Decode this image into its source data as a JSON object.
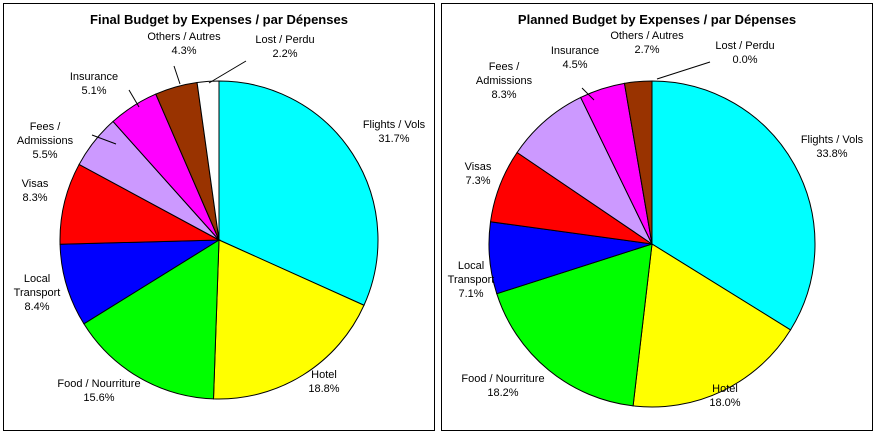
{
  "chart_data": [
    {
      "type": "pie",
      "title": "Final Budget by Expenses / par Dépenses",
      "slices": [
        {
          "name": "Flights / Vols",
          "value": 31.7,
          "label": "31.7%",
          "color": "#00FFFF"
        },
        {
          "name": "Hotel",
          "value": 18.8,
          "label": "18.8%",
          "color": "#FFFF00"
        },
        {
          "name": "Food / Nourriture",
          "value": 15.6,
          "label": "15.6%",
          "color": "#00FF00"
        },
        {
          "name": "Local Transport",
          "value": 8.4,
          "label": "8.4%",
          "color": "#0000FF"
        },
        {
          "name": "Visas",
          "value": 8.3,
          "label": "8.3%",
          "color": "#FF0000"
        },
        {
          "name": "Fees / Admissions",
          "value": 5.5,
          "label": "5.5%",
          "color": "#CC99FF"
        },
        {
          "name": "Insurance",
          "value": 5.1,
          "label": "5.1%",
          "color": "#FF00FF"
        },
        {
          "name": "Others / Autres",
          "value": 4.3,
          "label": "4.3%",
          "color": "#993300"
        },
        {
          "name": "Lost / Perdu",
          "value": 2.2,
          "label": "2.2%",
          "color": "#FFFFFF"
        }
      ]
    },
    {
      "type": "pie",
      "title": "Planned Budget by Expenses / par Dépenses",
      "slices": [
        {
          "name": "Flights / Vols",
          "value": 33.8,
          "label": "33.8%",
          "color": "#00FFFF"
        },
        {
          "name": "Hotel",
          "value": 18.0,
          "label": "18.0%",
          "color": "#FFFF00"
        },
        {
          "name": "Food / Nourriture",
          "value": 18.2,
          "label": "18.2%",
          "color": "#00FF00"
        },
        {
          "name": "Local Transport",
          "value": 7.1,
          "label": "7.1%",
          "color": "#0000FF"
        },
        {
          "name": "Visas",
          "value": 7.3,
          "label": "7.3%",
          "color": "#FF0000"
        },
        {
          "name": "Fees / Admissions",
          "value": 8.3,
          "label": "8.3%",
          "color": "#CC99FF"
        },
        {
          "name": "Insurance",
          "value": 4.5,
          "label": "4.5%",
          "color": "#FF00FF"
        },
        {
          "name": "Others / Autres",
          "value": 2.7,
          "label": "2.7%",
          "color": "#993300"
        },
        {
          "name": "Lost / Perdu",
          "value": 0.0,
          "label": "0.0%",
          "color": "#FFFFFF"
        }
      ]
    }
  ]
}
